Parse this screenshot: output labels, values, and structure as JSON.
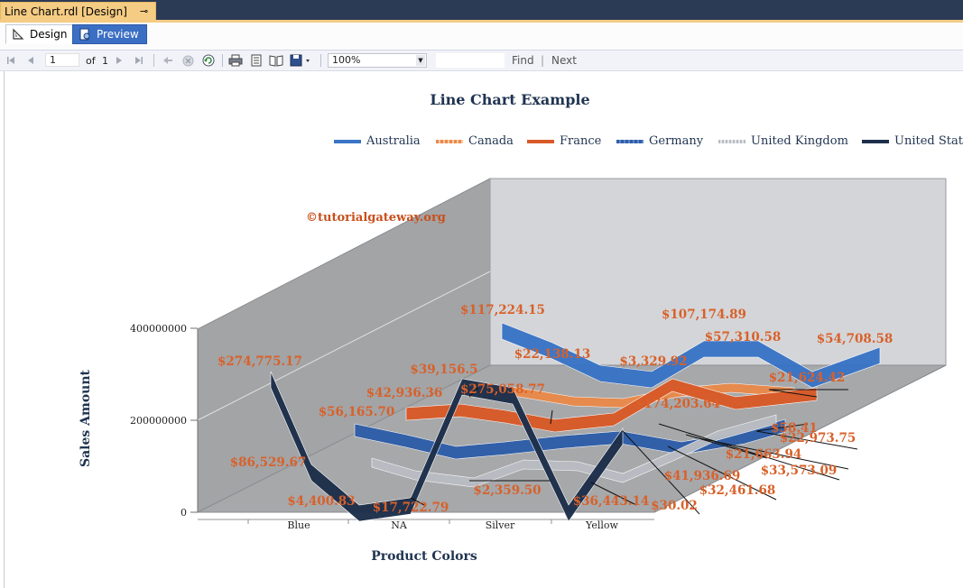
{
  "window": {
    "doc_tab_title": "Line Chart.rdl [Design]",
    "pin_glyph": "⊸",
    "close_glyph": "✕"
  },
  "view_tabs": [
    {
      "label": "Design",
      "icon": "design-ruler-icon"
    },
    {
      "label": "Preview",
      "icon": "preview-report-icon"
    }
  ],
  "toolbar": {
    "page_current": "1",
    "page_of": "of",
    "page_total": "1",
    "zoom": "100%",
    "find_input": "",
    "find_label": "Find",
    "find_separator": "|",
    "next_label": "Next"
  },
  "watermark": "©tutorialgateway.org",
  "colors": {
    "Australia": "#3a74c6",
    "Canada": "#e98a4a",
    "France": "#d85a28",
    "Germany": "#2f5ea8",
    "United Kingdom": "#b9bcc2",
    "United States": "#1d2f4b",
    "label": "#d8612a",
    "title": "#1f3350"
  },
  "chart_data": {
    "type": "line",
    "title": "Line Chart Example",
    "xlabel": "Product Colors",
    "ylabel": "Sales Amount",
    "categories": [
      "Blue",
      "NA",
      "Silver",
      "Yellow"
    ],
    "y_ticks": [
      "400000000",
      "200000000",
      "0"
    ],
    "ylim": [
      0,
      400000000
    ],
    "legend_position": "top",
    "three_d": true,
    "series": [
      {
        "name": "Australia"
      },
      {
        "name": "Canada"
      },
      {
        "name": "France"
      },
      {
        "name": "Germany"
      },
      {
        "name": "United Kingdom"
      },
      {
        "name": "United States"
      }
    ],
    "data_labels": [
      {
        "text": "$274,775.17",
        "series": "United States"
      },
      {
        "text": "$86,529.67",
        "series": "United States"
      },
      {
        "text": "$4,400.83",
        "series": "United States"
      },
      {
        "text": "$17,722.79",
        "series": "United States"
      },
      {
        "text": "$2,359.50",
        "series": "United Kingdom"
      },
      {
        "text": "$275,058.77",
        "series": "United States"
      },
      {
        "text": "$36,443.14",
        "series": "United States"
      },
      {
        "text": "$30.02",
        "series": "United Kingdom"
      },
      {
        "text": "$117,224.15",
        "series": "Australia"
      },
      {
        "text": "$22,138.13",
        "series": "Australia"
      },
      {
        "text": "$3,329.92",
        "series": "Australia"
      },
      {
        "text": "$107,174.89",
        "series": "Australia"
      },
      {
        "text": "$57,310.58",
        "series": "Australia"
      },
      {
        "text": "$54,708.58",
        "series": "Australia"
      },
      {
        "text": "$39,156.5",
        "series": "Canada"
      },
      {
        "text": "$42,936.36",
        "series": "France"
      },
      {
        "text": "$56,165.70",
        "series": "Germany"
      },
      {
        "text": "$21,624.42",
        "series": "Canada"
      },
      {
        "text": "$174,203.64",
        "series": "France"
      },
      {
        "text": "$58.41",
        "series": "Germany"
      },
      {
        "text": "$22,973.75",
        "series": "Germany"
      },
      {
        "text": "$21,663.94",
        "series": "United Kingdom"
      },
      {
        "text": "$33,573.09",
        "series": "United Kingdom"
      },
      {
        "text": "$32,461.68",
        "series": "United Kingdom"
      },
      {
        "text": "$41,936.69",
        "series": "United Kingdom"
      }
    ]
  }
}
